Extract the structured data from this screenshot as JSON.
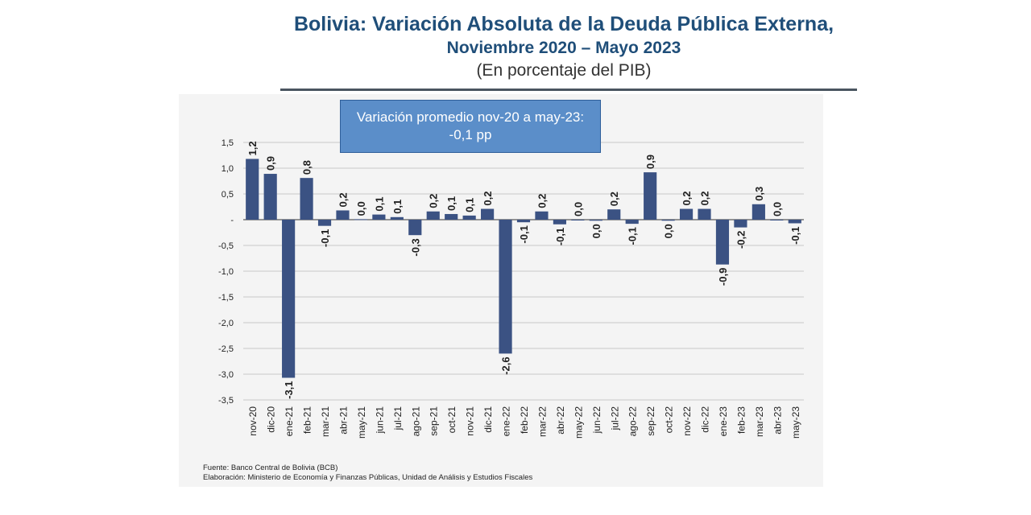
{
  "title": {
    "line1": "Bolivia: Variación Absoluta de la Deuda Pública Externa,",
    "line2": "Noviembre 2020 – Mayo 2023",
    "line3": "(En porcentaje del PIB)"
  },
  "callout": {
    "line1": "Variación promedio nov-20 a may-23:",
    "line2": "-0,1 pp"
  },
  "footer": {
    "source": "Fuente: Banco Central de Bolivia (BCB)",
    "prepared_by": "Elaboración: Ministerio de Economía y Finanzas Públicas, Unidad de Análisis y Estudios Fiscales"
  },
  "colors": {
    "bar": "#3b5283",
    "title": "#1f4e79",
    "callout": "#5b8ec9",
    "grid": "#c8c8c8"
  },
  "chart_data": {
    "type": "bar",
    "title": "Bolivia: Variación Absoluta de la Deuda Pública Externa, Noviembre 2020 – Mayo 2023",
    "ylabel": "En porcentaje del PIB",
    "xlabel": "",
    "ylim": [
      -3.5,
      1.5
    ],
    "yticks": [
      1.5,
      1.0,
      0.5,
      0,
      -0.5,
      -1.0,
      -1.5,
      -2.0,
      -2.5,
      -3.0,
      -3.5
    ],
    "ytick_labels": [
      "1,5",
      "1,0",
      "0,5",
      "-",
      "-0,5",
      "-1,0",
      "-1,5",
      "-2,0",
      "-2,5",
      "-3,0",
      "-3,5"
    ],
    "grid": true,
    "categories": [
      "nov-20",
      "dic-20",
      "ene-21",
      "feb-21",
      "mar-21",
      "abr-21",
      "may-21",
      "jun-21",
      "jul-21",
      "ago-21",
      "sep-21",
      "oct-21",
      "nov-21",
      "dic-21",
      "ene-22",
      "feb-22",
      "mar-22",
      "abr-22",
      "may-22",
      "jun-22",
      "jul-22",
      "ago-22",
      "sep-22",
      "oct-22",
      "nov-22",
      "dic-22",
      "ene-23",
      "feb-23",
      "mar-23",
      "abr-23",
      "may-23"
    ],
    "values": [
      1.18,
      0.89,
      -3.07,
      0.81,
      -0.12,
      0.18,
      0.01,
      0.1,
      0.05,
      -0.3,
      0.16,
      0.11,
      0.08,
      0.21,
      -2.6,
      -0.05,
      0.16,
      -0.09,
      0.0,
      -0.02,
      0.2,
      -0.08,
      0.92,
      -0.02,
      0.21,
      0.21,
      -0.87,
      -0.15,
      0.3,
      0.0,
      -0.07
    ],
    "data_labels": [
      "1,2",
      "0,9",
      "-3,1",
      "0,8",
      "-0,1",
      "0,2",
      "0,0",
      "0,1",
      "0,1",
      "-0,3",
      "0,2",
      "0,1",
      "0,1",
      "0,2",
      "-2,6",
      "-0,1",
      "0,2",
      "-0,1",
      "0,0",
      "0,0",
      "0,2",
      "-0,1",
      "0,9",
      "0,0",
      "0,2",
      "0,2",
      "-0,9",
      "-0,2",
      "0,3",
      "0,0",
      "-0,1"
    ]
  }
}
